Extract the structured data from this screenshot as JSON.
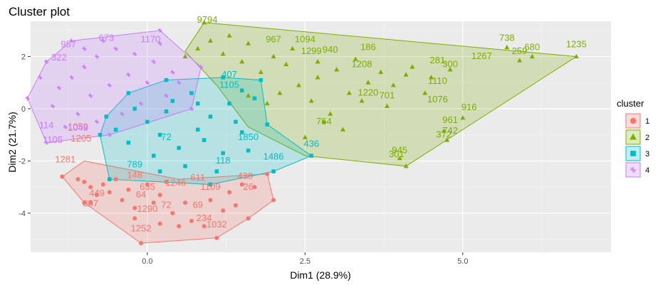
{
  "chart_data": {
    "type": "scatter",
    "title": "Cluster plot",
    "xlabel": "Dim1 (28.9%)",
    "ylabel": "Dim2 (21.7%)",
    "xlim": [
      -1.85,
      7.35
    ],
    "ylim": [
      -5.5,
      3.35
    ],
    "x_ticks": [
      {
        "v": 0,
        "label": "0.0"
      },
      {
        "v": 2.5,
        "label": "2.5"
      },
      {
        "v": 5,
        "label": "5.0"
      }
    ],
    "y_ticks": [
      {
        "v": -4,
        "label": "-4"
      },
      {
        "v": -2,
        "label": "-2"
      },
      {
        "v": 0,
        "label": "0"
      },
      {
        "v": 2,
        "label": "2"
      }
    ],
    "grid": true,
    "legend": {
      "title": "cluster",
      "position": "right",
      "entries": [
        "1",
        "2",
        "3",
        "4"
      ]
    },
    "clusters": [
      {
        "id": "1",
        "color": "#F8766D",
        "marker": "circle",
        "hull": [
          [
            -0.1,
            -5.15
          ],
          [
            1.1,
            -4.95
          ],
          [
            1.6,
            -4.2
          ],
          [
            2.0,
            -3.5
          ],
          [
            1.9,
            -2.5
          ],
          [
            0.5,
            -2.7
          ],
          [
            -1.0,
            -2.0
          ],
          [
            -1.35,
            -2.6
          ],
          [
            -1.0,
            -3.6
          ]
        ],
        "labels": [
          {
            "text": "1252",
            "x": -0.1,
            "y": -4.7
          },
          {
            "text": "1032",
            "x": 1.1,
            "y": -4.55
          },
          {
            "text": "234",
            "x": 0.9,
            "y": -4.3
          },
          {
            "text": "69",
            "x": 0.8,
            "y": -3.8
          },
          {
            "text": "72",
            "x": 0.3,
            "y": -3.8
          },
          {
            "text": "1109",
            "x": 1.0,
            "y": -3.1
          },
          {
            "text": "438",
            "x": 1.55,
            "y": -2.7
          },
          {
            "text": "26",
            "x": 1.6,
            "y": -3.1
          },
          {
            "text": "611",
            "x": 0.8,
            "y": -2.75
          },
          {
            "text": "1246",
            "x": 0.45,
            "y": -2.95
          },
          {
            "text": "1281",
            "x": -1.3,
            "y": -2.05
          },
          {
            "text": "387",
            "x": -0.9,
            "y": -3.75
          },
          {
            "text": "449",
            "x": -0.8,
            "y": -3.35
          },
          {
            "text": "148",
            "x": -0.2,
            "y": -2.65
          },
          {
            "text": "635",
            "x": 0.0,
            "y": -3.1
          },
          {
            "text": "64",
            "x": -0.1,
            "y": -3.4
          },
          {
            "text": "1290",
            "x": 0.0,
            "y": -3.95
          },
          {
            "text": "1059",
            "x": -1.1,
            "y": -0.8
          },
          {
            "text": "1205",
            "x": -1.05,
            "y": -1.25
          }
        ],
        "points": [
          [
            -1.35,
            -2.6
          ],
          [
            -1.0,
            -3.6
          ],
          [
            -0.1,
            -5.15
          ],
          [
            1.1,
            -4.95
          ],
          [
            1.6,
            -4.2
          ],
          [
            2.0,
            -3.5
          ],
          [
            1.9,
            -2.5
          ],
          [
            -1.0,
            -2.8
          ],
          [
            -0.9,
            -3.0
          ],
          [
            -0.8,
            -3.3
          ],
          [
            -0.6,
            -3.2
          ],
          [
            -0.4,
            -3.5
          ],
          [
            -0.2,
            -3.8
          ],
          [
            0.1,
            -3.6
          ],
          [
            0.4,
            -4.0
          ],
          [
            0.7,
            -4.3
          ],
          [
            0.9,
            -4.5
          ],
          [
            1.0,
            -3.5
          ],
          [
            1.3,
            -3.2
          ],
          [
            1.5,
            -2.9
          ],
          [
            -1.1,
            -2.7
          ],
          [
            -0.7,
            -2.9
          ],
          [
            -0.3,
            -3.1
          ],
          [
            0.2,
            -3.3
          ],
          [
            0.6,
            -3.6
          ],
          [
            1.2,
            -3.9
          ],
          [
            -0.5,
            -2.7
          ],
          [
            0.0,
            -2.9
          ],
          [
            0.3,
            -2.8
          ],
          [
            1.7,
            -3.0
          ],
          [
            -0.9,
            -3.6
          ],
          [
            -0.2,
            -4.2
          ],
          [
            0.5,
            -4.5
          ],
          [
            0.2,
            -4.4
          ],
          [
            1.4,
            -3.7
          ]
        ]
      },
      {
        "id": "2",
        "color": "#7CAE00",
        "marker": "triangle",
        "hull": [
          [
            0.9,
            3.3
          ],
          [
            6.8,
            2.0
          ],
          [
            4.1,
            -2.2
          ],
          [
            2.5,
            -1.8
          ],
          [
            1.6,
            -0.7
          ],
          [
            1.1,
            0.9
          ],
          [
            0.6,
            2.2
          ]
        ],
        "labels": [
          {
            "text": "9794",
            "x": 0.95,
            "y": 3.3
          },
          {
            "text": "738",
            "x": 5.7,
            "y": 2.6
          },
          {
            "text": "1235",
            "x": 6.8,
            "y": 2.35
          },
          {
            "text": "680",
            "x": 6.1,
            "y": 2.25
          },
          {
            "text": "259",
            "x": 5.9,
            "y": 2.1
          },
          {
            "text": "1267",
            "x": 5.3,
            "y": 1.9
          },
          {
            "text": "1094",
            "x": 2.5,
            "y": 2.55
          },
          {
            "text": "940",
            "x": 2.9,
            "y": 2.15
          },
          {
            "text": "186",
            "x": 3.5,
            "y": 2.25
          },
          {
            "text": "1208",
            "x": 3.4,
            "y": 1.6
          },
          {
            "text": "281",
            "x": 4.6,
            "y": 1.75
          },
          {
            "text": "300",
            "x": 4.8,
            "y": 1.6
          },
          {
            "text": "1110",
            "x": 4.6,
            "y": 0.95
          },
          {
            "text": "701",
            "x": 3.8,
            "y": 0.4
          },
          {
            "text": "1076",
            "x": 4.6,
            "y": 0.25
          },
          {
            "text": "916",
            "x": 5.1,
            "y": -0.05
          },
          {
            "text": "961",
            "x": 4.8,
            "y": -0.55
          },
          {
            "text": "742",
            "x": 4.8,
            "y": -0.95
          },
          {
            "text": "372",
            "x": 4.7,
            "y": -1.1
          },
          {
            "text": "945",
            "x": 4.0,
            "y": -1.7
          },
          {
            "text": "301",
            "x": 3.95,
            "y": -1.85
          },
          {
            "text": "967",
            "x": 2.0,
            "y": 2.55
          },
          {
            "text": "1299",
            "x": 2.6,
            "y": 2.1
          },
          {
            "text": "1220",
            "x": 3.5,
            "y": 0.5
          },
          {
            "text": "764",
            "x": 2.8,
            "y": -0.6
          }
        ],
        "points": [
          [
            0.9,
            3.3
          ],
          [
            6.8,
            2.0
          ],
          [
            4.1,
            -2.2
          ],
          [
            5.7,
            2.35
          ],
          [
            6.1,
            2.0
          ],
          [
            5.9,
            1.85
          ],
          [
            4.8,
            1.5
          ],
          [
            4.5,
            1.2
          ],
          [
            4.4,
            0.6
          ],
          [
            3.8,
            0.1
          ],
          [
            5.0,
            -0.35
          ],
          [
            4.7,
            -0.85
          ],
          [
            4.75,
            -1.2
          ],
          [
            4.0,
            -1.9
          ],
          [
            3.3,
            1.9
          ],
          [
            3.0,
            1.5
          ],
          [
            2.7,
            1.2
          ],
          [
            2.4,
            0.9
          ],
          [
            2.1,
            0.6
          ],
          [
            1.8,
            1.4
          ],
          [
            1.5,
            1.8
          ],
          [
            1.2,
            2.1
          ],
          [
            0.8,
            2.3
          ],
          [
            0.6,
            2.0
          ],
          [
            2.6,
            0.3
          ],
          [
            2.9,
            -0.2
          ],
          [
            3.2,
            0.6
          ],
          [
            3.5,
            1.0
          ],
          [
            3.7,
            1.4
          ],
          [
            4.2,
            1.6
          ],
          [
            2.0,
            2.0
          ],
          [
            2.3,
            2.3
          ],
          [
            1.6,
            2.5
          ],
          [
            1.3,
            2.8
          ],
          [
            2.8,
            -0.5
          ],
          [
            3.1,
            -0.8
          ],
          [
            2.5,
            -1.1
          ],
          [
            1.9,
            0.2
          ],
          [
            1.6,
            0.5
          ],
          [
            3.9,
            0.9
          ],
          [
            4.1,
            1.3
          ],
          [
            3.4,
            0.3
          ],
          [
            2.2,
            1.7
          ],
          [
            1.0,
            2.6
          ],
          [
            2.7,
            1.8
          ]
        ]
      },
      {
        "id": "3",
        "color": "#00BFC4",
        "marker": "square",
        "hull": [
          [
            -0.75,
            -1.0
          ],
          [
            -0.6,
            -2.7
          ],
          [
            1.0,
            -2.9
          ],
          [
            2.0,
            -2.4
          ],
          [
            2.6,
            -1.8
          ],
          [
            1.9,
            -0.6
          ],
          [
            1.8,
            1.1
          ],
          [
            1.2,
            1.2
          ],
          [
            0.3,
            1.1
          ],
          [
            -0.3,
            0.6
          ],
          [
            -0.65,
            -0.3
          ]
        ],
        "labels": [
          {
            "text": "436",
            "x": 2.6,
            "y": -1.45
          },
          {
            "text": "1486",
            "x": 2.0,
            "y": -1.95
          },
          {
            "text": "789",
            "x": -0.2,
            "y": -2.25
          },
          {
            "text": "1105",
            "x": 1.3,
            "y": 0.8
          },
          {
            "text": "407",
            "x": 1.3,
            "y": 1.2
          },
          {
            "text": "72",
            "x": 0.3,
            "y": -1.2
          },
          {
            "text": "118",
            "x": 1.2,
            "y": -2.1
          },
          {
            "text": "1850",
            "x": 1.6,
            "y": -1.2
          }
        ],
        "points": [
          [
            -0.75,
            -1.0
          ],
          [
            -0.6,
            -2.7
          ],
          [
            1.0,
            -2.9
          ],
          [
            2.0,
            -2.4
          ],
          [
            2.6,
            -1.8
          ],
          [
            1.9,
            -0.6
          ],
          [
            1.8,
            1.1
          ],
          [
            1.2,
            1.2
          ],
          [
            0.3,
            1.1
          ],
          [
            -0.3,
            0.6
          ],
          [
            -0.65,
            -0.3
          ],
          [
            0.0,
            -0.5
          ],
          [
            0.2,
            -1.0
          ],
          [
            0.5,
            -1.5
          ],
          [
            0.8,
            -0.8
          ],
          [
            1.0,
            -0.3
          ],
          [
            1.3,
            0.2
          ],
          [
            1.5,
            -0.9
          ],
          [
            0.4,
            0.3
          ],
          [
            0.7,
            0.6
          ],
          [
            0.1,
            -1.8
          ],
          [
            0.6,
            -2.2
          ],
          [
            1.1,
            -2.4
          ],
          [
            1.6,
            -1.6
          ],
          [
            -0.3,
            -1.3
          ],
          [
            -0.2,
            0.0
          ],
          [
            0.9,
            -1.2
          ],
          [
            1.4,
            -0.5
          ],
          [
            0.3,
            -0.1
          ],
          [
            1.7,
            0.4
          ],
          [
            0.2,
            -2.4
          ],
          [
            1.2,
            -1.7
          ],
          [
            -0.5,
            -0.8
          ],
          [
            0.8,
            0.2
          ],
          [
            1.5,
            0.7
          ]
        ]
      },
      {
        "id": "4",
        "color": "#C77CFF",
        "marker": "cross",
        "hull": [
          [
            -1.6,
            -1.3
          ],
          [
            -0.6,
            -1.0
          ],
          [
            0.7,
            0.0
          ],
          [
            0.85,
            1.6
          ],
          [
            0.2,
            3.0
          ],
          [
            -1.2,
            2.6
          ],
          [
            -1.6,
            1.8
          ],
          [
            -1.9,
            0.4
          ]
        ],
        "labels": [
          {
            "text": "673",
            "x": -0.65,
            "y": 2.6
          },
          {
            "text": "1170",
            "x": 0.05,
            "y": 2.55
          },
          {
            "text": "957",
            "x": -1.25,
            "y": 2.35
          },
          {
            "text": "1105",
            "x": -1.5,
            "y": -1.3
          },
          {
            "text": "114",
            "x": -1.6,
            "y": -0.75
          },
          {
            "text": "1049",
            "x": -1.1,
            "y": -0.85
          },
          {
            "text": "322",
            "x": -1.4,
            "y": 1.85
          }
        ],
        "points": [
          [
            -1.6,
            -1.3
          ],
          [
            -0.6,
            -1.0
          ],
          [
            0.7,
            0.0
          ],
          [
            0.85,
            1.6
          ],
          [
            0.2,
            3.0
          ],
          [
            -1.2,
            2.6
          ],
          [
            -1.6,
            1.8
          ],
          [
            -1.9,
            0.4
          ],
          [
            -1.4,
            0.8
          ],
          [
            -1.2,
            1.2
          ],
          [
            -1.0,
            1.6
          ],
          [
            -0.8,
            2.0
          ],
          [
            -0.5,
            2.3
          ],
          [
            -0.2,
            2.1
          ],
          [
            0.1,
            1.8
          ],
          [
            0.4,
            1.4
          ],
          [
            0.5,
            1.0
          ],
          [
            0.3,
            0.5
          ],
          [
            -0.1,
            0.2
          ],
          [
            -0.4,
            -0.2
          ],
          [
            -0.8,
            -0.5
          ],
          [
            -1.1,
            -0.2
          ],
          [
            -1.5,
            0.1
          ],
          [
            -1.3,
            -0.7
          ],
          [
            -0.9,
            0.5
          ],
          [
            -0.6,
            0.9
          ],
          [
            -0.3,
            1.3
          ],
          [
            0.0,
            1.0
          ],
          [
            0.2,
            2.5
          ],
          [
            -0.7,
            2.6
          ],
          [
            -1.0,
            2.3
          ],
          [
            -1.7,
            1.2
          ]
        ]
      }
    ]
  }
}
